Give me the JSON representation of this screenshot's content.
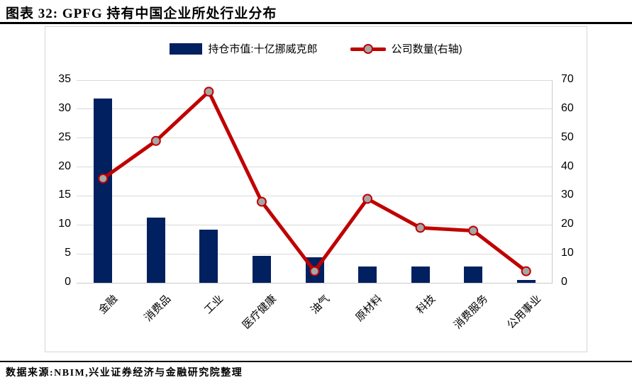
{
  "title": "图表 32: GPFG 持有中国企业所处行业分布",
  "legend": {
    "bar_label": "持仓市值:十亿挪威克郎",
    "line_label": "公司数量(右轴)"
  },
  "footer": {
    "text": "数据来源:NBIM,兴业证券经济与金融研究院整理"
  },
  "colors": {
    "bar": "#002060",
    "line": "#c00000",
    "marker_fill": "#a6a6a6",
    "marker_stroke": "#c00000",
    "gridline": "#d9d9d9",
    "axis_line": "#c9c9c9"
  },
  "chart_data": {
    "type": "bar",
    "title": "图表 32: GPFG 持有中国企业所处行业分布",
    "categories": [
      "金融",
      "消费品",
      "工业",
      "医疗健康",
      "油气",
      "原材料",
      "科技",
      "消费服务",
      "公用事业"
    ],
    "series": [
      {
        "name": "持仓市值:十亿挪威克郎",
        "type": "bar",
        "axis": "left",
        "values": [
          31.8,
          11.2,
          9.2,
          4.7,
          4.4,
          2.8,
          2.8,
          2.8,
          0.5
        ]
      },
      {
        "name": "公司数量(右轴)",
        "type": "line",
        "axis": "right",
        "values": [
          36,
          49,
          66,
          28,
          4,
          29,
          19,
          18,
          4
        ]
      }
    ],
    "left_axis": {
      "min": 0,
      "max": 35,
      "step": 5
    },
    "right_axis": {
      "min": 0,
      "max": 70,
      "step": 10
    },
    "grid": true,
    "legend_position": "top"
  }
}
